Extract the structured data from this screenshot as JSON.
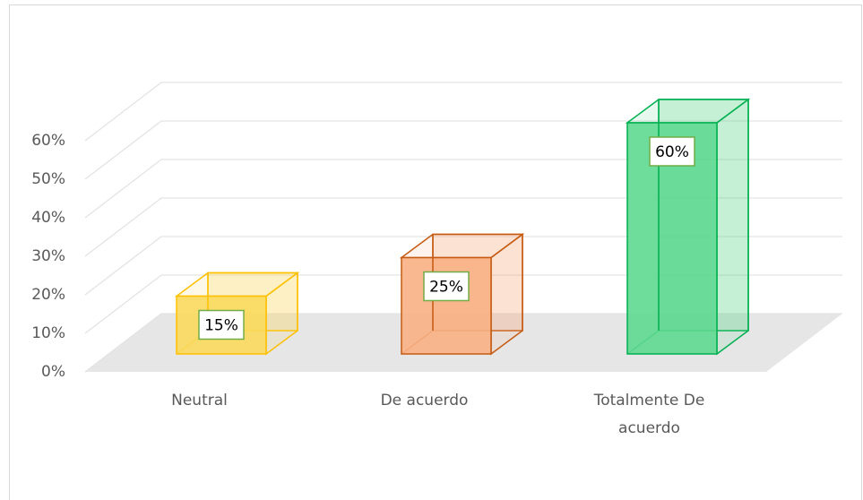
{
  "chart_data": {
    "type": "bar3d",
    "categories": [
      "Neutral",
      "De acuerdo",
      "Totalmente De acuerdo"
    ],
    "values": [
      15,
      25,
      60
    ],
    "value_labels": [
      "15%",
      "25%",
      "60%"
    ],
    "colors": [
      "#ffc000",
      "#c55a11",
      "#00b050"
    ],
    "fills": [
      "#fad95c",
      "#f8b084",
      "#5ed88f"
    ],
    "ylim": [
      0,
      60
    ],
    "yticks": [
      {
        "value": 0,
        "label": "0%"
      },
      {
        "value": 10,
        "label": "10%"
      },
      {
        "value": 20,
        "label": "20%"
      },
      {
        "value": 30,
        "label": "30%"
      },
      {
        "value": 40,
        "label": "40%"
      },
      {
        "value": 50,
        "label": "50%"
      },
      {
        "value": 60,
        "label": "60%"
      }
    ],
    "grid": true
  }
}
